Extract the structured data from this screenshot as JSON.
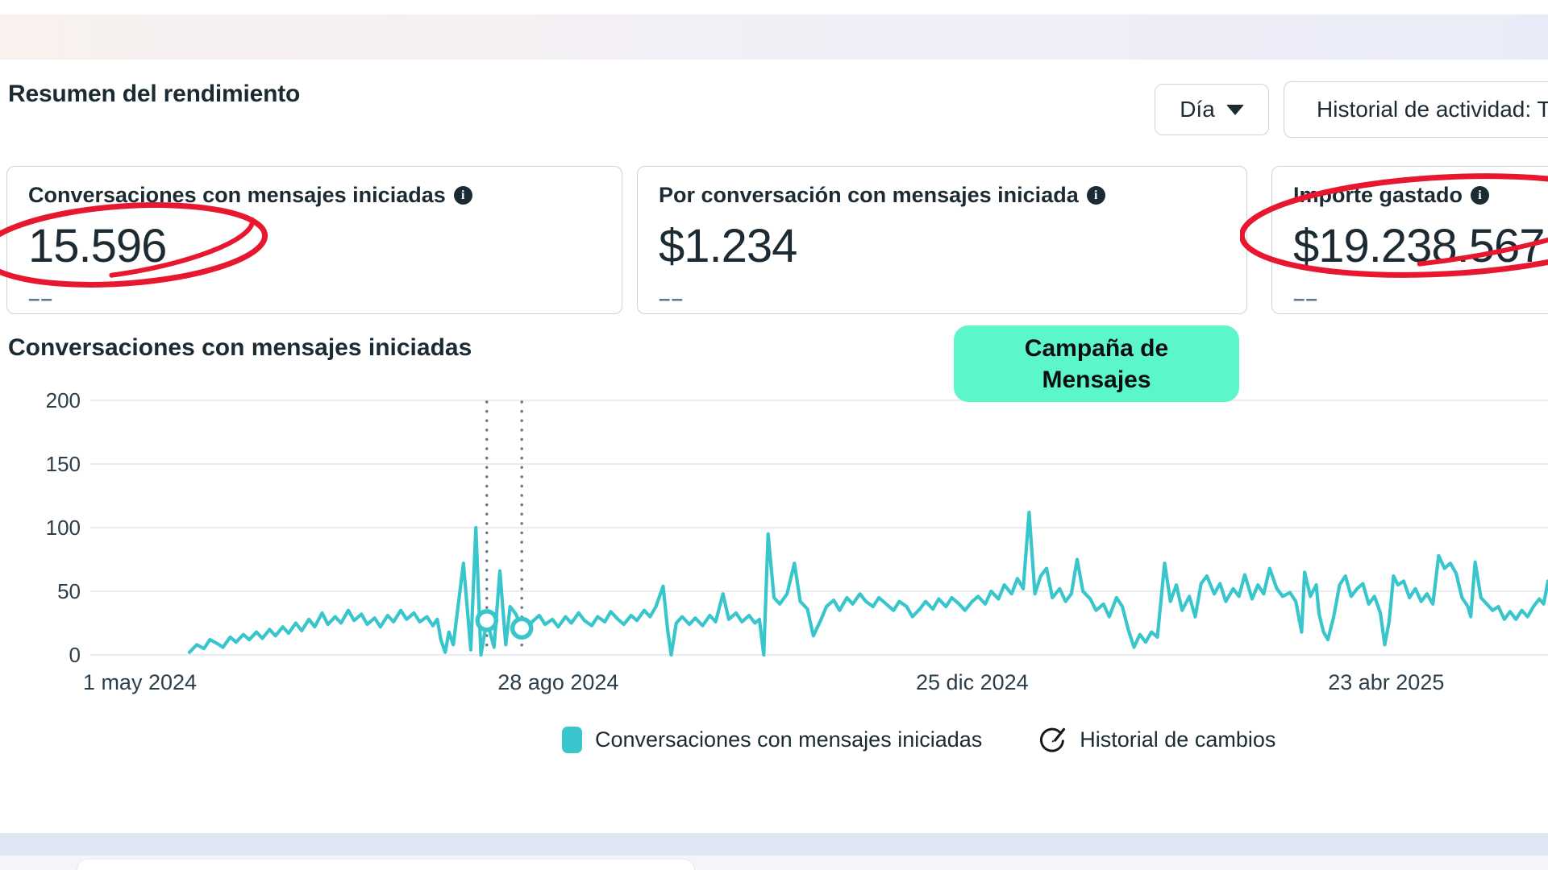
{
  "header": {
    "title": "Resumen del rendimiento",
    "interval_dropdown": "Día",
    "activity_history_button": "Historial de actividad: T"
  },
  "metric_cards": [
    {
      "title": "Conversaciones con mensajes iniciadas",
      "value": "15.596",
      "delta": "––",
      "annotated": "red-circle"
    },
    {
      "title": "Por conversación con mensajes iniciada",
      "value": "$1.234",
      "delta": "––",
      "annotated": ""
    },
    {
      "title": "Importe gastado",
      "value": "$19.238.567",
      "delta": "––",
      "annotated": "red-circle"
    }
  ],
  "icons": {
    "info_glyph": "i"
  },
  "campaign_badge": "Campaña de Mensajes",
  "chart_section_title": "Conversaciones con mensajes iniciadas",
  "legend": {
    "series_label": "Conversaciones con mensajes iniciadas",
    "change_history_label": "Historial de cambios"
  },
  "colors": {
    "line": "#38c5cc",
    "grid": "#e4e7ea",
    "dotted": "#6b747d",
    "badge": "#5bf6c9",
    "annotation_red": "#e7172f",
    "text_dark": "#1c2b33"
  },
  "chart_data": {
    "type": "line",
    "title": "Conversaciones con mensajes iniciadas",
    "series_name": "Conversaciones con mensajes iniciadas",
    "ylabel": "",
    "xlabel": "",
    "ylim": [
      0,
      200
    ],
    "y_ticks": [
      0,
      50,
      100,
      150,
      200
    ],
    "grid": "horizontal",
    "legend_position": "bottom",
    "x_ticks": [
      {
        "label": "1 may 2024",
        "f": 0.034
      },
      {
        "label": "28 ago 2024",
        "f": 0.321
      },
      {
        "label": "25 dic 2024",
        "f": 0.605
      },
      {
        "label": "23 abr 2025",
        "f": 0.889
      }
    ],
    "change_markers": [
      {
        "f": 0.272,
        "value": 27
      },
      {
        "f": 0.296,
        "value": 21
      }
    ],
    "points": [
      [
        0.068,
        2
      ],
      [
        0.073,
        8
      ],
      [
        0.078,
        5
      ],
      [
        0.082,
        12
      ],
      [
        0.087,
        9
      ],
      [
        0.091,
        6
      ],
      [
        0.096,
        14
      ],
      [
        0.1,
        10
      ],
      [
        0.105,
        16
      ],
      [
        0.109,
        12
      ],
      [
        0.114,
        18
      ],
      [
        0.118,
        13
      ],
      [
        0.123,
        20
      ],
      [
        0.127,
        15
      ],
      [
        0.132,
        22
      ],
      [
        0.136,
        17
      ],
      [
        0.141,
        25
      ],
      [
        0.145,
        19
      ],
      [
        0.15,
        28
      ],
      [
        0.154,
        22
      ],
      [
        0.159,
        33
      ],
      [
        0.163,
        24
      ],
      [
        0.168,
        30
      ],
      [
        0.172,
        25
      ],
      [
        0.177,
        35
      ],
      [
        0.181,
        27
      ],
      [
        0.186,
        32
      ],
      [
        0.19,
        24
      ],
      [
        0.195,
        29
      ],
      [
        0.199,
        22
      ],
      [
        0.204,
        31
      ],
      [
        0.208,
        26
      ],
      [
        0.213,
        35
      ],
      [
        0.217,
        28
      ],
      [
        0.222,
        33
      ],
      [
        0.226,
        26
      ],
      [
        0.231,
        30
      ],
      [
        0.235,
        23
      ],
      [
        0.238,
        28
      ],
      [
        0.2405,
        12
      ],
      [
        0.2435,
        2
      ],
      [
        0.246,
        18
      ],
      [
        0.249,
        8
      ],
      [
        0.256,
        72
      ],
      [
        0.261,
        4
      ],
      [
        0.2645,
        100
      ],
      [
        0.268,
        0
      ],
      [
        0.272,
        27
      ],
      [
        0.277,
        6
      ],
      [
        0.281,
        66
      ],
      [
        0.285,
        8
      ],
      [
        0.288,
        38
      ],
      [
        0.292,
        32
      ],
      [
        0.296,
        21
      ],
      [
        0.299,
        17
      ],
      [
        0.303,
        26
      ],
      [
        0.308,
        31
      ],
      [
        0.312,
        24
      ],
      [
        0.317,
        28
      ],
      [
        0.321,
        22
      ],
      [
        0.326,
        30
      ],
      [
        0.33,
        25
      ],
      [
        0.335,
        33
      ],
      [
        0.339,
        27
      ],
      [
        0.344,
        23
      ],
      [
        0.348,
        30
      ],
      [
        0.353,
        26
      ],
      [
        0.357,
        34
      ],
      [
        0.362,
        28
      ],
      [
        0.366,
        24
      ],
      [
        0.371,
        31
      ],
      [
        0.375,
        27
      ],
      [
        0.38,
        35
      ],
      [
        0.384,
        30
      ],
      [
        0.388,
        38
      ],
      [
        0.393,
        54
      ],
      [
        0.396,
        20
      ],
      [
        0.3985,
        0
      ],
      [
        0.402,
        25
      ],
      [
        0.406,
        30
      ],
      [
        0.411,
        24
      ],
      [
        0.415,
        29
      ],
      [
        0.42,
        23
      ],
      [
        0.425,
        31
      ],
      [
        0.429,
        26
      ],
      [
        0.434,
        48
      ],
      [
        0.438,
        28
      ],
      [
        0.443,
        33
      ],
      [
        0.447,
        26
      ],
      [
        0.452,
        31
      ],
      [
        0.456,
        25
      ],
      [
        0.459,
        28
      ],
      [
        0.462,
        0
      ],
      [
        0.465,
        95
      ],
      [
        0.469,
        45
      ],
      [
        0.473,
        40
      ],
      [
        0.478,
        48
      ],
      [
        0.483,
        72
      ],
      [
        0.487,
        42
      ],
      [
        0.492,
        36
      ],
      [
        0.496,
        15
      ],
      [
        0.501,
        27
      ],
      [
        0.505,
        38
      ],
      [
        0.51,
        43
      ],
      [
        0.514,
        35
      ],
      [
        0.519,
        45
      ],
      [
        0.523,
        40
      ],
      [
        0.528,
        48
      ],
      [
        0.532,
        42
      ],
      [
        0.537,
        38
      ],
      [
        0.541,
        45
      ],
      [
        0.546,
        40
      ],
      [
        0.551,
        35
      ],
      [
        0.555,
        42
      ],
      [
        0.56,
        38
      ],
      [
        0.564,
        30
      ],
      [
        0.569,
        36
      ],
      [
        0.573,
        42
      ],
      [
        0.578,
        36
      ],
      [
        0.582,
        44
      ],
      [
        0.587,
        38
      ],
      [
        0.591,
        45
      ],
      [
        0.596,
        40
      ],
      [
        0.6,
        35
      ],
      [
        0.605,
        42
      ],
      [
        0.609,
        46
      ],
      [
        0.614,
        40
      ],
      [
        0.618,
        50
      ],
      [
        0.623,
        44
      ],
      [
        0.627,
        55
      ],
      [
        0.632,
        48
      ],
      [
        0.636,
        60
      ],
      [
        0.64,
        52
      ],
      [
        0.644,
        112
      ],
      [
        0.648,
        48
      ],
      [
        0.652,
        62
      ],
      [
        0.656,
        68
      ],
      [
        0.66,
        45
      ],
      [
        0.665,
        52
      ],
      [
        0.669,
        42
      ],
      [
        0.673,
        48
      ],
      [
        0.677,
        75
      ],
      [
        0.681,
        50
      ],
      [
        0.686,
        44
      ],
      [
        0.69,
        35
      ],
      [
        0.695,
        40
      ],
      [
        0.699,
        30
      ],
      [
        0.704,
        45
      ],
      [
        0.708,
        38
      ],
      [
        0.712,
        20
      ],
      [
        0.716,
        6
      ],
      [
        0.72,
        16
      ],
      [
        0.724,
        10
      ],
      [
        0.728,
        18
      ],
      [
        0.732,
        14
      ],
      [
        0.737,
        72
      ],
      [
        0.741,
        42
      ],
      [
        0.745,
        55
      ],
      [
        0.749,
        35
      ],
      [
        0.754,
        46
      ],
      [
        0.758,
        30
      ],
      [
        0.762,
        56
      ],
      [
        0.766,
        62
      ],
      [
        0.771,
        48
      ],
      [
        0.775,
        56
      ],
      [
        0.779,
        42
      ],
      [
        0.784,
        52
      ],
      [
        0.788,
        46
      ],
      [
        0.792,
        63
      ],
      [
        0.797,
        44
      ],
      [
        0.801,
        55
      ],
      [
        0.805,
        48
      ],
      [
        0.809,
        68
      ],
      [
        0.814,
        52
      ],
      [
        0.818,
        46
      ],
      [
        0.823,
        49
      ],
      [
        0.827,
        42
      ],
      [
        0.829,
        30
      ],
      [
        0.831,
        18
      ],
      [
        0.833,
        65
      ],
      [
        0.837,
        46
      ],
      [
        0.841,
        55
      ],
      [
        0.843,
        32
      ],
      [
        0.846,
        18
      ],
      [
        0.849,
        12
      ],
      [
        0.853,
        30
      ],
      [
        0.857,
        55
      ],
      [
        0.861,
        62
      ],
      [
        0.865,
        46
      ],
      [
        0.869,
        52
      ],
      [
        0.873,
        56
      ],
      [
        0.877,
        40
      ],
      [
        0.881,
        46
      ],
      [
        0.885,
        33
      ],
      [
        0.888,
        8
      ],
      [
        0.891,
        26
      ],
      [
        0.894,
        62
      ],
      [
        0.897,
        55
      ],
      [
        0.901,
        58
      ],
      [
        0.905,
        45
      ],
      [
        0.909,
        52
      ],
      [
        0.913,
        42
      ],
      [
        0.917,
        48
      ],
      [
        0.921,
        40
      ],
      [
        0.925,
        78
      ],
      [
        0.929,
        68
      ],
      [
        0.933,
        72
      ],
      [
        0.937,
        64
      ],
      [
        0.941,
        45
      ],
      [
        0.945,
        38
      ],
      [
        0.947,
        30
      ],
      [
        0.95,
        73
      ],
      [
        0.954,
        45
      ],
      [
        0.958,
        40
      ],
      [
        0.962,
        35
      ],
      [
        0.966,
        38
      ],
      [
        0.97,
        28
      ],
      [
        0.974,
        34
      ],
      [
        0.978,
        28
      ],
      [
        0.982,
        35
      ],
      [
        0.986,
        30
      ],
      [
        0.99,
        38
      ],
      [
        0.994,
        44
      ],
      [
        0.997,
        40
      ],
      [
        1.0,
        58
      ]
    ]
  }
}
